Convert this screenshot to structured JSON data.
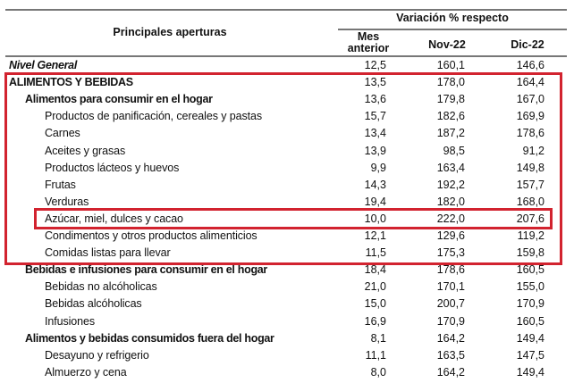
{
  "header": {
    "col_label": "Principales aperturas",
    "group_label": "Variación % respecto",
    "columns": [
      "Mes anterior",
      "Nov-22",
      "Dic-22"
    ]
  },
  "highlight_color": "#d2232f",
  "rows": [
    {
      "label": "Nivel General",
      "level": 0,
      "italic": true,
      "values": [
        "12,5",
        "160,1",
        "146,6"
      ]
    },
    {
      "label": "ALIMENTOS Y BEBIDAS",
      "level": 0,
      "values": [
        "13,5",
        "178,0",
        "164,4"
      ]
    },
    {
      "label": "Alimentos para consumir en el hogar",
      "level": 1,
      "values": [
        "13,6",
        "179,8",
        "167,0"
      ]
    },
    {
      "label": "Productos de panificación, cereales y pastas",
      "level": 2,
      "values": [
        "15,7",
        "182,6",
        "169,9"
      ]
    },
    {
      "label": "Carnes",
      "level": 2,
      "values": [
        "13,4",
        "187,2",
        "178,6"
      ]
    },
    {
      "label": "Aceites y grasas",
      "level": 2,
      "values": [
        "13,9",
        "98,5",
        "91,2"
      ]
    },
    {
      "label": "Productos lácteos y huevos",
      "level": 2,
      "values": [
        "9,9",
        "163,4",
        "149,8"
      ]
    },
    {
      "label": "Frutas",
      "level": 2,
      "values": [
        "14,3",
        "192,2",
        "157,7"
      ]
    },
    {
      "label": "Verduras",
      "level": 2,
      "values": [
        "19,4",
        "182,0",
        "168,0"
      ]
    },
    {
      "label": "Azúcar, miel, dulces y cacao",
      "level": 2,
      "values": [
        "10,0",
        "222,0",
        "207,6"
      ]
    },
    {
      "label": "Condimentos y otros productos alimenticios",
      "level": 2,
      "values": [
        "12,1",
        "129,6",
        "119,2"
      ]
    },
    {
      "label": "Comidas listas para llevar",
      "level": 2,
      "values": [
        "11,5",
        "175,3",
        "159,8"
      ]
    },
    {
      "label": "Bebidas e infusiones para consumir en el hogar",
      "level": 1,
      "values": [
        "18,4",
        "178,6",
        "160,5"
      ]
    },
    {
      "label": "Bebidas no alcóholicas",
      "level": 2,
      "values": [
        "21,0",
        "170,1",
        "155,0"
      ]
    },
    {
      "label": "Bebidas alcóholicas",
      "level": 2,
      "values": [
        "15,0",
        "200,7",
        "170,9"
      ]
    },
    {
      "label": "Infusiones",
      "level": 2,
      "values": [
        "16,9",
        "170,9",
        "160,5"
      ]
    },
    {
      "label": "Alimentos y bebidas consumidos fuera del hogar",
      "level": 1,
      "values": [
        "8,1",
        "164,2",
        "149,4"
      ]
    },
    {
      "label": "Desayuno y refrigerio",
      "level": 2,
      "values": [
        "11,1",
        "163,5",
        "147,5"
      ]
    },
    {
      "label": "Almuerzo y cena",
      "level": 2,
      "values": [
        "8,0",
        "164,2",
        "149,4"
      ]
    }
  ]
}
